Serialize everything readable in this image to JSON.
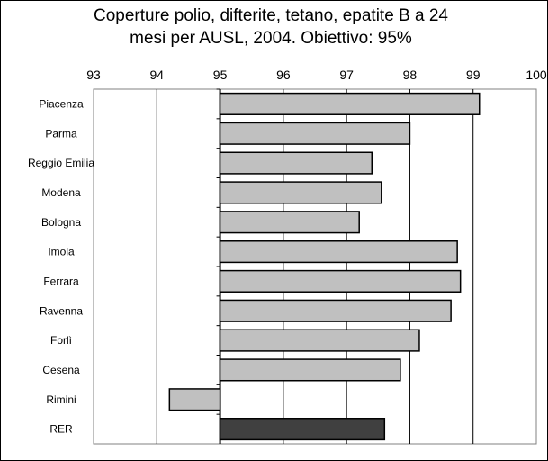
{
  "chart_data": {
    "type": "bar",
    "orientation": "horizontal",
    "title_line1": "Coperture polio, difterite, tetano, epatite B a 24",
    "title_line2": "mesi per AUSL, 2004. Obiettivo: 95%",
    "categories": [
      "Piacenza",
      "Parma",
      "Reggio Emilia",
      "Modena",
      "Bologna",
      "Imola",
      "Ferrara",
      "Ravenna",
      "Forlì",
      "Cesena",
      "Rimini",
      "RER"
    ],
    "values": [
      99.1,
      98.0,
      97.4,
      97.55,
      97.2,
      98.75,
      98.8,
      98.65,
      98.15,
      97.85,
      94.2,
      97.6
    ],
    "baseline": 95,
    "xlim": [
      93,
      100
    ],
    "xticks": [
      "93",
      "94",
      "95",
      "96",
      "97",
      "98",
      "99",
      "100"
    ],
    "grid": "vertical",
    "colors": {
      "bar_fill": "#c0c0c0",
      "highlight_fill": "#404040",
      "plot_background": "#ffffff",
      "axis": "#000000",
      "outer_border": "#808080"
    },
    "highlight_categories": [
      "RER"
    ]
  }
}
